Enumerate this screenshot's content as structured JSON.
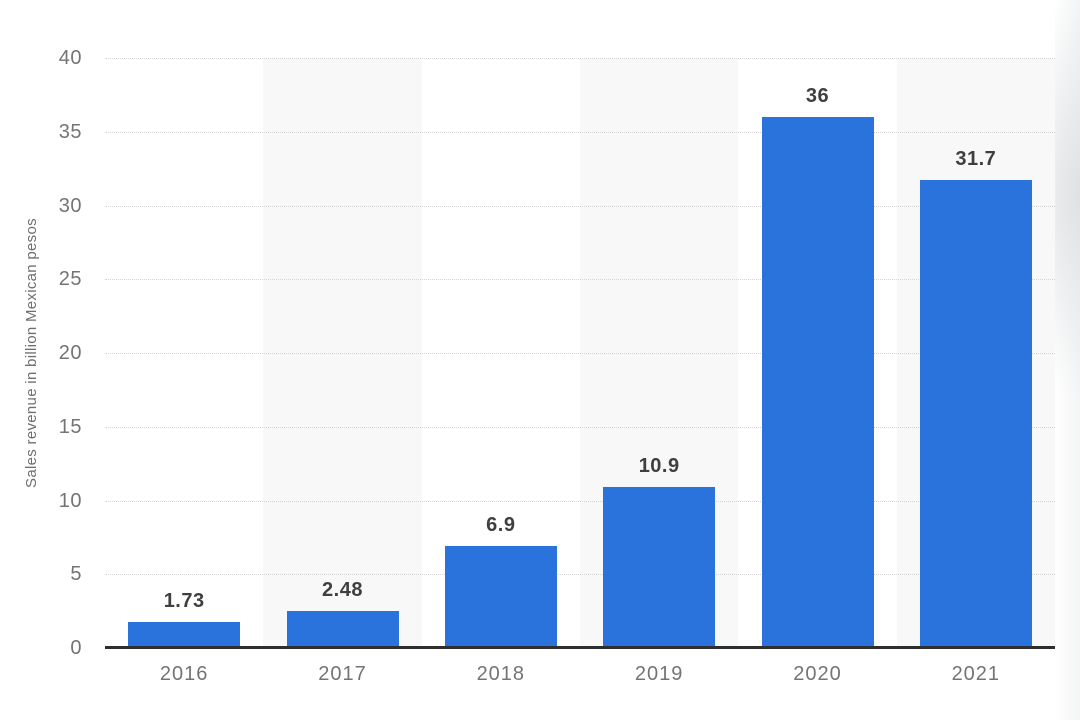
{
  "page": {
    "background": "#ffffff"
  },
  "chart_data": {
    "type": "bar",
    "title": "",
    "categories": [
      "2016",
      "2017",
      "2018",
      "2019",
      "2020",
      "2021"
    ],
    "values": [
      1.73,
      2.48,
      6.9,
      10.9,
      36,
      31.7
    ],
    "value_labels": [
      "1.73",
      "2.48",
      "6.9",
      "10.9",
      "36",
      "31.7"
    ],
    "xlabel": "",
    "ylabel": "Sales revenue in billion Mexican pesos",
    "ylim": [
      0,
      40
    ],
    "yticks": [
      0,
      5,
      10,
      15,
      20,
      25,
      30,
      35,
      40
    ],
    "grid": "horizontal-dotted",
    "legend": "none",
    "plot_bands": "alternating column shading on 2017, 2019, 2021",
    "colors": {
      "bar": "#2b73dc",
      "band": "#f8f8f8",
      "gridline": "#d5d5d5",
      "baseline": "#2e2e2e",
      "axis_text": "#747474",
      "value_label_text": "#3f3f3f",
      "y_title_text": "#6f6f6f"
    }
  }
}
